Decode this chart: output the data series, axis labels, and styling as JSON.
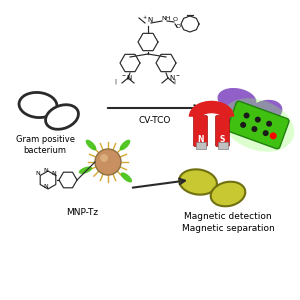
{
  "bg_color": "#ffffff",
  "bacteria_outline_color": "#2a2a2a",
  "bacteria_purple_color": "#9060c8",
  "bacteria_yellow_color": "#c8c832",
  "bacteria_yellow_edge": "#707010",
  "arrow_color": "#2a2a2a",
  "cv_tco_label": "CV-TCO",
  "mnp_tz_label": "MNP-Tz",
  "gram_positive_label": "Gram positive\nbacterium",
  "magnetic_label": "Magnetic detection\nMagnetic separation",
  "magnet_red": "#e02020",
  "magnet_silver": "#c0c0c0",
  "nanoparticle_body": "#d4a830",
  "nanoparticle_core": "#c89060",
  "green_spike_color": "#40c010",
  "chemical_line_color": "#2a2a2a",
  "device_green": "#40c010",
  "device_edge": "#208010"
}
